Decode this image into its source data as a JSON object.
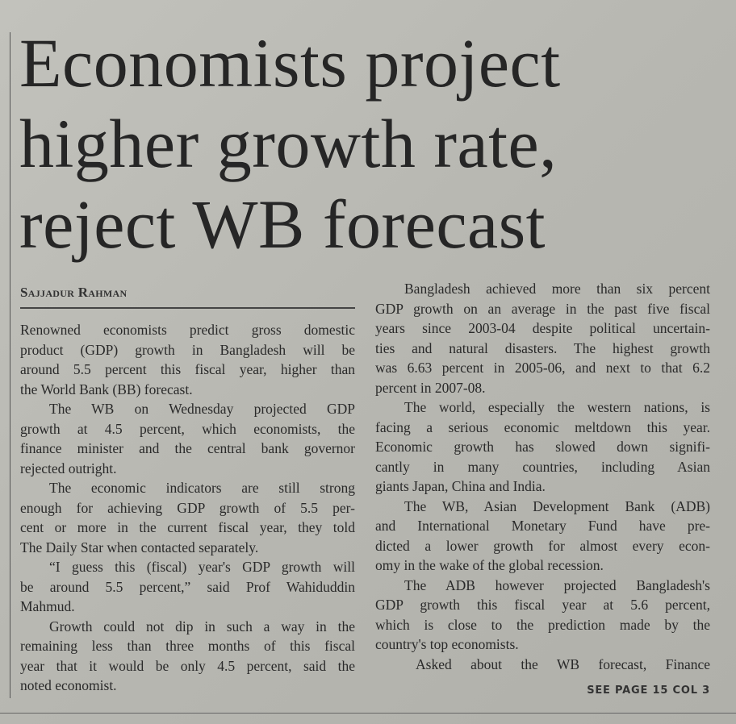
{
  "headline": {
    "lines": [
      "Economists project",
      "higher growth rate,",
      "reject WB forecast"
    ]
  },
  "byline": "Sajjadur Rahman",
  "columns": [
    {
      "paragraphs": [
        {
          "lines": [
            "Renowned economists predict gross domestic",
            "product (GDP) growth in Bangladesh will be",
            "around 5.5 percent this fiscal year, higher than",
            "the World Bank (BB) forecast."
          ]
        },
        {
          "lines": [
            "The WB on Wednesday projected GDP",
            "growth at 4.5 percent, which economists, the",
            "finance minister and the central bank governor",
            "rejected outright."
          ]
        },
        {
          "lines": [
            "The economic indicators are still strong",
            "enough for achieving GDP growth of 5.5 per-",
            "cent or more in the current fiscal year, they told",
            "The Daily Star when contacted separately."
          ]
        },
        {
          "lines": [
            "“I guess this (fiscal) year's GDP growth will",
            "be around 5.5 percent,” said Prof Wahiduddin",
            "Mahmud."
          ]
        },
        {
          "lines": [
            "Growth could not dip in such a way in the",
            "remaining less than three months of this fiscal",
            "year that it would be only 4.5 percent, said the",
            "noted economist."
          ]
        }
      ]
    },
    {
      "paragraphs": [
        {
          "lines": [
            "Bangladesh achieved more than six percent",
            "GDP growth on an average in the past five fiscal",
            "years since 2003-04 despite political uncertain-",
            "ties and natural disasters. The highest growth",
            "was 6.63 percent in 2005-06, and next to that 6.2",
            "percent in 2007-08."
          ]
        },
        {
          "lines": [
            "The world, especially the western nations, is",
            "facing a serious economic meltdown this year.",
            "Economic growth has slowed down signifi-",
            "cantly in many countries, including Asian",
            "giants Japan, China and India."
          ]
        },
        {
          "lines": [
            "The WB, Asian Development Bank (ADB)",
            "and International Monetary Fund have pre-",
            "dicted a lower growth for almost every econ-",
            "omy in the wake of the global recession."
          ]
        },
        {
          "lines": [
            "The ADB however projected Bangladesh's",
            "GDP growth this fiscal year at 5.6 percent,",
            "which is close to the prediction made by the",
            "country's top economists."
          ]
        },
        {
          "lines": [
            "Asked about the WB forecast, Finance"
          ],
          "continues": true
        }
      ]
    }
  ],
  "jump_line": "SEE PAGE 15 COL 3"
}
